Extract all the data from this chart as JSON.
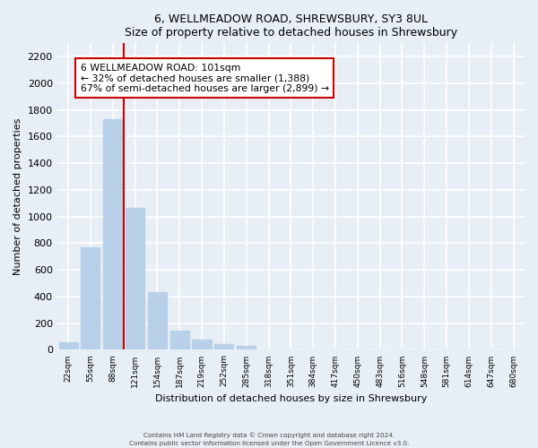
{
  "title": "6, WELLMEADOW ROAD, SHREWSBURY, SY3 8UL",
  "subtitle": "Size of property relative to detached houses in Shrewsbury",
  "xlabel": "Distribution of detached houses by size in Shrewsbury",
  "ylabel": "Number of detached properties",
  "bar_labels": [
    "22sqm",
    "55sqm",
    "88sqm",
    "121sqm",
    "154sqm",
    "187sqm",
    "219sqm",
    "252sqm",
    "285sqm",
    "318sqm",
    "351sqm",
    "384sqm",
    "417sqm",
    "450sqm",
    "483sqm",
    "516sqm",
    "548sqm",
    "581sqm",
    "614sqm",
    "647sqm",
    "680sqm"
  ],
  "bar_values": [
    55,
    770,
    1730,
    1065,
    430,
    145,
    80,
    45,
    28,
    0,
    0,
    0,
    0,
    0,
    0,
    0,
    0,
    0,
    0,
    0,
    0
  ],
  "bar_color": "#b8d0e8",
  "vline_color": "#cc0000",
  "annotation_title": "6 WELLMEADOW ROAD: 101sqm",
  "annotation_line1": "← 32% of detached houses are smaller (1,388)",
  "annotation_line2": "67% of semi-detached houses are larger (2,899) →",
  "annotation_box_facecolor": "#ffffff",
  "annotation_box_edgecolor": "#cc0000",
  "ylim": [
    0,
    2300
  ],
  "yticks": [
    0,
    200,
    400,
    600,
    800,
    1000,
    1200,
    1400,
    1600,
    1800,
    2000,
    2200
  ],
  "footer1": "Contains HM Land Registry data © Crown copyright and database right 2024.",
  "footer2": "Contains public sector information licensed under the Open Government Licence v3.0.",
  "bg_color": "#e8eef5",
  "grid_color": "#ffffff",
  "vline_bar_index": 2
}
